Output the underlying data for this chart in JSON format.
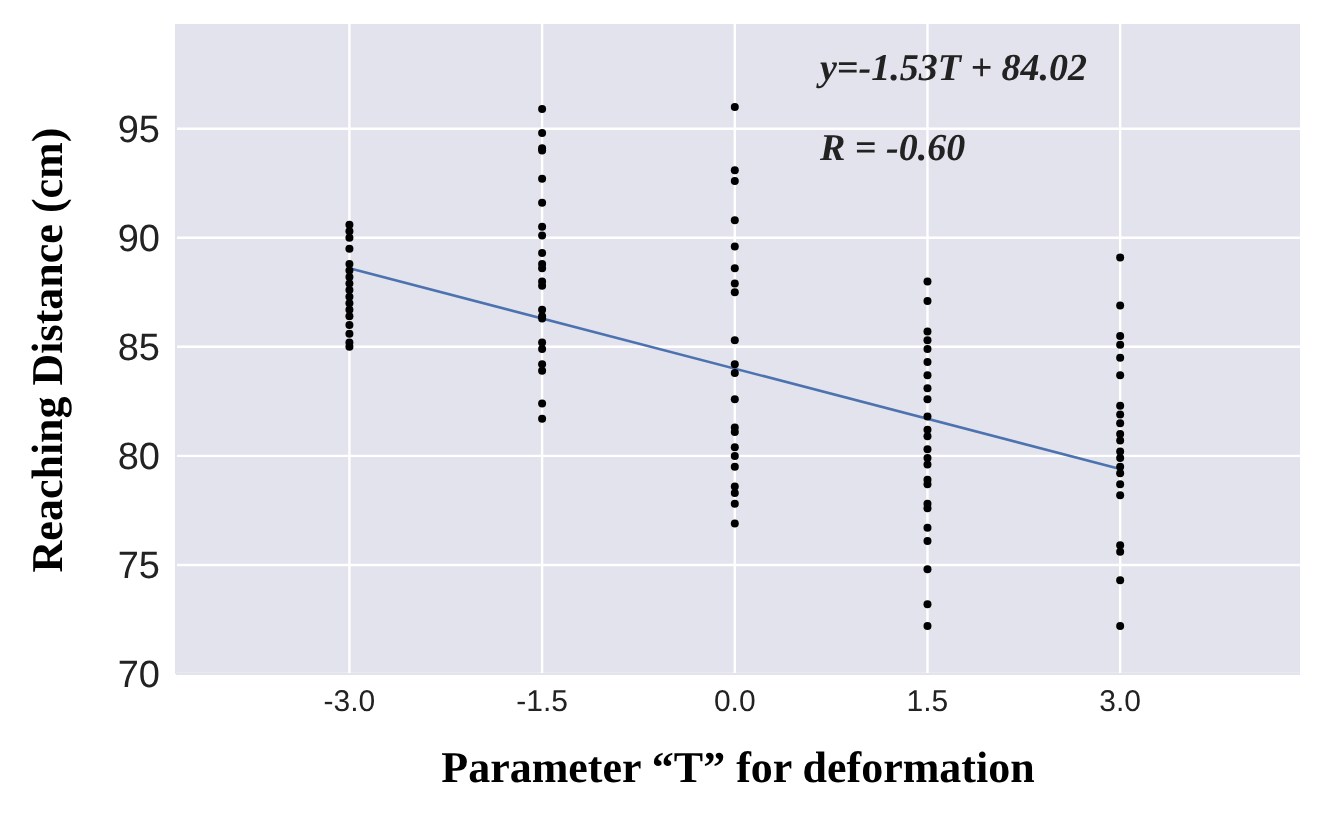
{
  "chart_data": {
    "type": "scatter",
    "xlabel": "Parameter “T” for deformation",
    "ylabel": "Reaching Distance (cm)",
    "annotations": [
      "y=-1.53T + 84.02",
      "R = -0.60"
    ],
    "xlim": [
      -4.35,
      4.4
    ],
    "xticks": [
      {
        "value": -3,
        "label": "-3.0"
      },
      {
        "value": -1.5,
        "label": "-1.5"
      },
      {
        "value": 0,
        "label": "0.0"
      },
      {
        "value": 1.5,
        "label": "1.5"
      },
      {
        "value": 3,
        "label": "3.0"
      }
    ],
    "ylim": [
      70,
      99.8
    ],
    "yticks": [
      70,
      75,
      80,
      85,
      90,
      95
    ],
    "grid": true,
    "marker": "circle",
    "series": [
      {
        "color": "#000000",
        "x": [
          -3,
          -3,
          -3,
          -3,
          -3,
          -3,
          -3,
          -3,
          -3,
          -3,
          -3,
          -3,
          -3,
          -3,
          -3,
          -3,
          -3,
          -1.5,
          -1.5,
          -1.5,
          -1.5,
          -1.5,
          -1.5,
          -1.5,
          -1.5,
          -1.5,
          -1.5,
          -1.5,
          -1.5,
          -1.5,
          -1.5,
          -1.5,
          -1.5,
          -1.5,
          -1.5,
          -1.5,
          -1.5,
          -1.5,
          -1.5,
          0,
          0,
          0,
          0,
          0,
          0,
          0,
          0,
          0,
          0,
          0,
          0,
          0,
          0,
          0,
          0,
          0,
          0,
          0,
          0,
          0,
          1.5,
          1.5,
          1.5,
          1.5,
          1.5,
          1.5,
          1.5,
          1.5,
          1.5,
          1.5,
          1.5,
          1.5,
          1.5,
          1.5,
          1.5,
          1.5,
          1.5,
          1.5,
          1.5,
          1.5,
          1.5,
          1.5,
          1.5,
          1.5,
          3,
          3,
          3,
          3,
          3,
          3,
          3,
          3,
          3,
          3,
          3,
          3,
          3,
          3,
          3,
          3,
          3,
          3,
          3,
          3,
          3
        ],
        "values": [
          90.6,
          90.3,
          90.0,
          89.5,
          88.8,
          88.5,
          88.2,
          87.9,
          87.6,
          87.3,
          87.0,
          86.7,
          86.4,
          86.0,
          85.6,
          85.2,
          85.0,
          95.9,
          94.8,
          94.1,
          94.0,
          92.7,
          91.6,
          90.5,
          90.1,
          89.3,
          88.8,
          88.6,
          88.0,
          87.8,
          86.7,
          86.4,
          86.3,
          85.2,
          84.9,
          84.2,
          83.9,
          82.4,
          81.7,
          96.0,
          93.1,
          92.6,
          90.8,
          89.6,
          88.6,
          87.9,
          87.5,
          85.3,
          84.2,
          83.8,
          82.6,
          81.3,
          81.1,
          80.4,
          80.0,
          79.5,
          78.6,
          78.3,
          77.8,
          76.9,
          88.0,
          87.1,
          85.7,
          85.3,
          84.9,
          84.3,
          83.7,
          83.1,
          82.6,
          81.8,
          81.2,
          80.9,
          80.3,
          79.9,
          79.6,
          78.9,
          78.7,
          77.8,
          77.6,
          76.7,
          76.1,
          74.8,
          73.2,
          72.2,
          89.1,
          86.9,
          85.5,
          85.1,
          84.5,
          83.7,
          82.3,
          81.9,
          81.5,
          81.0,
          80.7,
          80.2,
          79.9,
          79.5,
          79.2,
          78.7,
          78.2,
          75.9,
          75.6,
          74.3,
          72.2
        ]
      },
      {
        "type": "line",
        "color": "#4c72b0",
        "marker": "none",
        "x": [
          -3,
          3
        ],
        "values": [
          88.6,
          79.4
        ]
      }
    ]
  }
}
